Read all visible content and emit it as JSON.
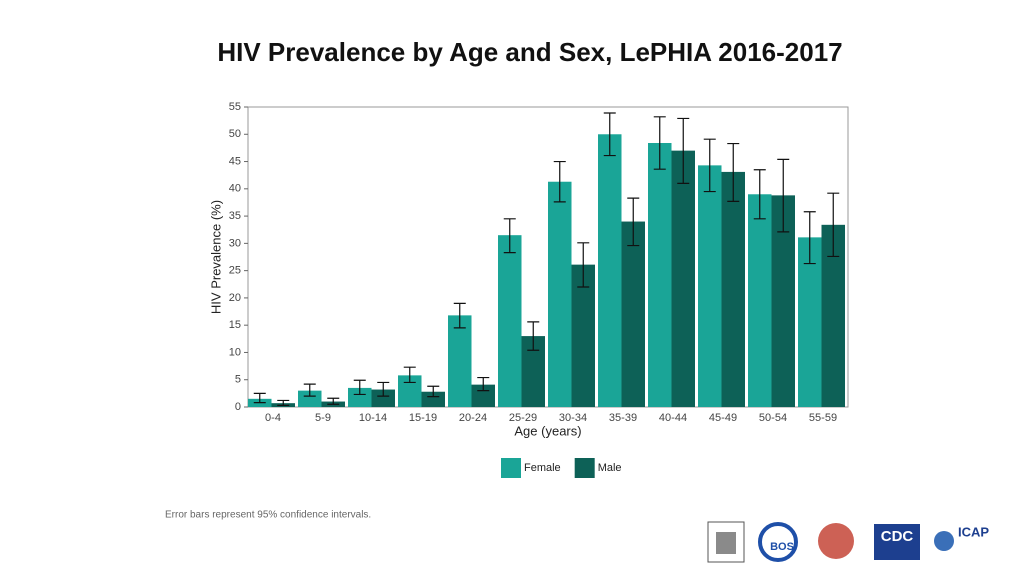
{
  "chart_data": {
    "type": "bar",
    "title": "HIV Prevalence by Age and Sex, LePHIA 2016-2017",
    "x_label": "Age (years)",
    "y_label": "HIV Prevalence (%)",
    "categories": [
      "0-4",
      "5-9",
      "10-14",
      "15-19",
      "20-24",
      "25-29",
      "30-34",
      "35-39",
      "40-44",
      "45-49",
      "50-54",
      "55-59"
    ],
    "series": [
      {
        "name": "Female",
        "color": "#1aa597",
        "values": [
          1.5,
          3.0,
          3.5,
          5.8,
          16.8,
          31.5,
          41.3,
          50.0,
          48.4,
          44.3,
          39.0,
          31.1
        ],
        "ci_low": [
          0.8,
          2.0,
          2.3,
          4.5,
          14.5,
          28.3,
          37.6,
          46.1,
          43.6,
          39.5,
          34.5,
          26.3
        ],
        "ci_high": [
          2.5,
          4.2,
          4.9,
          7.3,
          19.0,
          34.5,
          45.0,
          53.9,
          53.2,
          49.1,
          43.5,
          35.8
        ]
      },
      {
        "name": "Male",
        "color": "#0d6157",
        "values": [
          0.7,
          1.0,
          3.2,
          2.8,
          4.1,
          13.0,
          26.1,
          34.0,
          47.0,
          43.1,
          38.8,
          33.4
        ],
        "ci_low": [
          0.3,
          0.5,
          2.0,
          1.9,
          3.0,
          10.4,
          22.0,
          29.6,
          41.0,
          37.7,
          32.1,
          27.6
        ],
        "ci_high": [
          1.2,
          1.6,
          4.5,
          3.8,
          5.4,
          15.6,
          30.1,
          38.3,
          52.9,
          48.3,
          45.4,
          39.2
        ]
      }
    ],
    "ylim": [
      0,
      55
    ],
    "yticks": [
      0,
      5,
      10,
      15,
      20,
      25,
      30,
      35,
      40,
      45,
      50,
      55
    ],
    "grid": false,
    "legend": "bottom",
    "footnote": "Error bars represent 95% confidence intervals."
  },
  "logos": [
    "BOS",
    "CDC",
    "ICAP"
  ]
}
